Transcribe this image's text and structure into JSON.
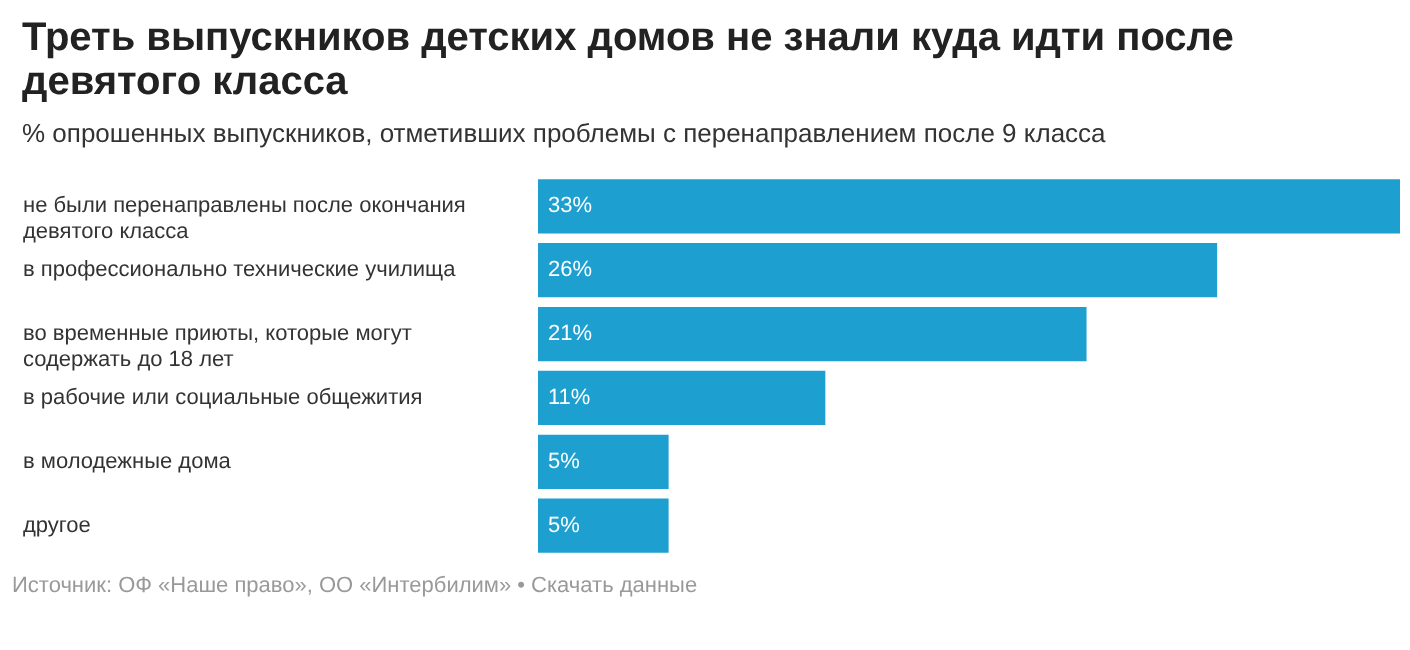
{
  "chart_data": {
    "type": "bar",
    "orientation": "horizontal",
    "title": "Треть выпускников детских домов не знали куда идти после девятого класса",
    "subtitle": "% опрошенных выпускников, отметивших проблемы с перенаправлением после 9 класса",
    "categories": [
      "не были перенаправлены после окончания девятого класса",
      "в профессионально технические училища",
      "во временные приюты, которые могут содержать до 18 лет",
      "в рабочие или социальные общежития",
      "в молодежные дома",
      "другое"
    ],
    "values": [
      33,
      26,
      21,
      11,
      5,
      5
    ],
    "value_labels": [
      "33%",
      "26%",
      "21%",
      "11%",
      "5%",
      "5%"
    ],
    "color": "#1d9fcf",
    "annotations": [
      "Источник: ОФ «Наше право», ОО «Интербилим» • Скачать данные"
    ]
  }
}
